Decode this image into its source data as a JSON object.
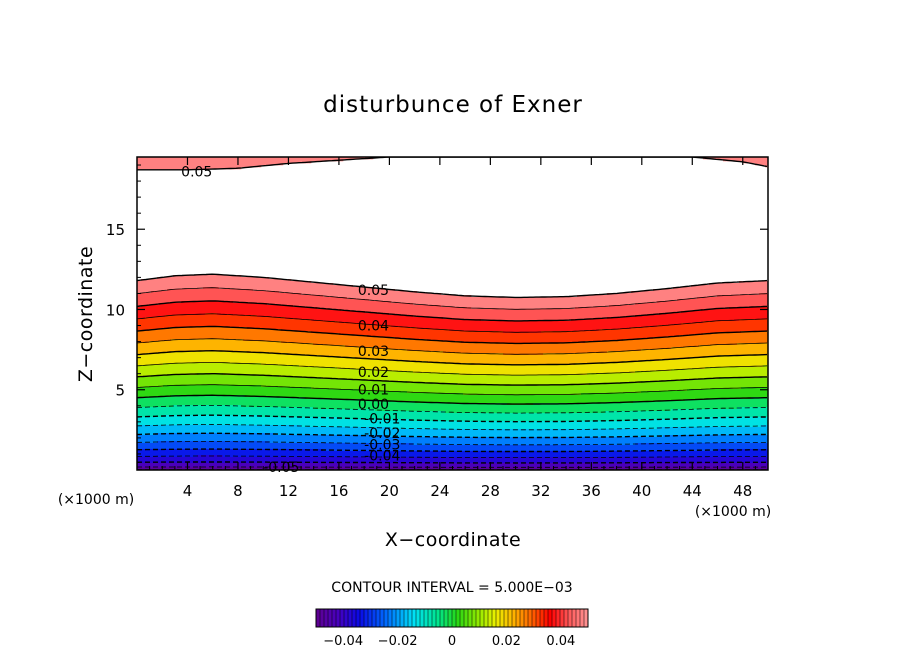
{
  "chart_data": {
    "type": "contour",
    "title": "disturbunce of Exner",
    "xlabel": "X−coordinate",
    "ylabel": "Z−coordinate",
    "x_unit_left": "(×1000 m)",
    "x_unit_right": "(×1000 m)",
    "xlim": [
      0,
      50
    ],
    "ylim": [
      0,
      19.5
    ],
    "x_ticks": [
      4,
      8,
      12,
      16,
      20,
      24,
      28,
      32,
      36,
      40,
      44,
      48
    ],
    "y_ticks": [
      5,
      10,
      15
    ],
    "contour_interval_text": "CONTOUR INTERVAL = 5.000E−03",
    "contour_interval": 0.005,
    "field": {
      "min": -0.05,
      "max": 0.05,
      "top_cap_base_z": [
        [
          0,
          18.7
        ],
        [
          2,
          18.7
        ],
        [
          4,
          18.7
        ],
        [
          8,
          18.8
        ],
        [
          12,
          19.1
        ],
        [
          16,
          19.3
        ],
        [
          20,
          19.5
        ],
        [
          40,
          19.5
        ],
        [
          44,
          19.5
        ],
        [
          48,
          19.2
        ],
        [
          50,
          18.9
        ]
      ],
      "upper_band_edge_z": [
        [
          0,
          11.8
        ],
        [
          3,
          12.1
        ],
        [
          6,
          12.2
        ],
        [
          10,
          12.0
        ],
        [
          14,
          11.7
        ],
        [
          18,
          11.4
        ],
        [
          22,
          11.1
        ],
        [
          26,
          10.85
        ],
        [
          30,
          10.75
        ],
        [
          34,
          10.8
        ],
        [
          38,
          11.0
        ],
        [
          42,
          11.3
        ],
        [
          46,
          11.65
        ],
        [
          50,
          11.8
        ]
      ],
      "wave_amplitude_profile": "decreasing toward surface"
    },
    "contour_labels": [
      {
        "text": "0.05",
        "x": 3.5,
        "z": 18.6
      },
      {
        "text": "0.05",
        "x": 17.5,
        "z": 11.2
      },
      {
        "text": "0.04",
        "x": 17.5,
        "z": 9.0
      },
      {
        "text": "0.03",
        "x": 17.5,
        "z": 7.4
      },
      {
        "text": "0.02",
        "x": 17.5,
        "z": 6.1
      },
      {
        "text": "0.01",
        "x": 17.5,
        "z": 5.0
      },
      {
        "text": "0.00",
        "x": 17.5,
        "z": 4.1
      },
      {
        "text": "-0.01",
        "x": 18.0,
        "z": 3.2
      },
      {
        "text": "-0.02",
        "x": 18.0,
        "z": 2.3
      },
      {
        "text": "-0.03",
        "x": 18.0,
        "z": 1.6
      },
      {
        "text": "-0.04",
        "x": 18.0,
        "z": 0.9
      },
      {
        "text": "-0.05",
        "x": 10.0,
        "z": 0.2
      }
    ],
    "colorbar": {
      "range": [
        -0.05,
        0.05
      ],
      "ticks": [
        "−0.04",
        "−0.02",
        "0",
        "0.02",
        "0.04"
      ],
      "tick_values": [
        -0.04,
        -0.02,
        0,
        0.02,
        0.04
      ]
    },
    "negative_contours": "dashed",
    "grid": false,
    "legend": "colorbar bottom-center"
  }
}
